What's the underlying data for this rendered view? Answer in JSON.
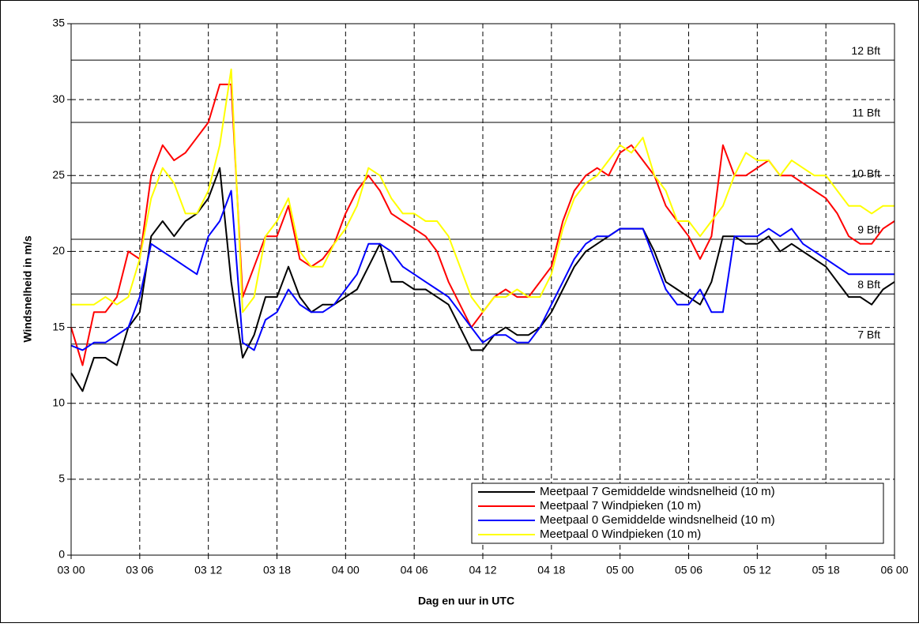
{
  "chart_data": {
    "type": "line",
    "x_label": "Dag en uur in UTC",
    "y_label": "Windsnelheid in m/s",
    "x": [
      0,
      1,
      2,
      3,
      4,
      5,
      6,
      7,
      8,
      9,
      10,
      11,
      12,
      13,
      14,
      15,
      16,
      17,
      18,
      19,
      20,
      21,
      22,
      23,
      24,
      25,
      26,
      27,
      28,
      29,
      30,
      31,
      32,
      33,
      34,
      35,
      36,
      37,
      38,
      39,
      40,
      41,
      42,
      43,
      44,
      45,
      46,
      47,
      48,
      49,
      50,
      51,
      52,
      53,
      54,
      55,
      56,
      57,
      58,
      59,
      60,
      61,
      62,
      63,
      64,
      65,
      66,
      67,
      68,
      69,
      70,
      71,
      72
    ],
    "xlim": [
      0,
      72
    ],
    "xticks": [
      {
        "value": 0,
        "label": "03 00"
      },
      {
        "value": 6,
        "label": "03 06"
      },
      {
        "value": 12,
        "label": "03 12"
      },
      {
        "value": 18,
        "label": "03 18"
      },
      {
        "value": 24,
        "label": "04 00"
      },
      {
        "value": 30,
        "label": "04 06"
      },
      {
        "value": 36,
        "label": "04 12"
      },
      {
        "value": 42,
        "label": "04 18"
      },
      {
        "value": 48,
        "label": "05 00"
      },
      {
        "value": 54,
        "label": "05 06"
      },
      {
        "value": 60,
        "label": "05 12"
      },
      {
        "value": 66,
        "label": "05 18"
      },
      {
        "value": 72,
        "label": "06 00"
      }
    ],
    "ylim": [
      0,
      35
    ],
    "yticks": [
      0,
      5,
      10,
      15,
      20,
      25,
      30,
      35
    ],
    "grid": true,
    "legend": "lower right",
    "reference_lines": [
      {
        "value": 32.6,
        "label": "12 Bft"
      },
      {
        "value": 28.5,
        "label": "11 Bft"
      },
      {
        "value": 24.5,
        "label": "10 Bft"
      },
      {
        "value": 20.8,
        "label": "9 Bft"
      },
      {
        "value": 17.2,
        "label": "8 Bft"
      },
      {
        "value": 13.9,
        "label": "7 Bft"
      }
    ],
    "series": [
      {
        "name": "Meetpaal 7 Gemiddelde windsnelheid (10 m)",
        "color": "#000000",
        "values": [
          12,
          10.8,
          13,
          13,
          12.5,
          15,
          16,
          21,
          22,
          21,
          22,
          22.5,
          23.5,
          25.5,
          18,
          13,
          14.5,
          17,
          17,
          19,
          17,
          16,
          16.5,
          16.5,
          17,
          17.5,
          19,
          20.5,
          18,
          18,
          17.5,
          17.5,
          17,
          16.5,
          15,
          13.5,
          13.5,
          14.5,
          15,
          14.5,
          14.5,
          15,
          16,
          17.5,
          19,
          20,
          20.5,
          21,
          21.5,
          21.5,
          21.5,
          20,
          18,
          17.5,
          17,
          16.5,
          18,
          21,
          21,
          20.5,
          20.5,
          21,
          20,
          20.5,
          20,
          19.5,
          19,
          18,
          17,
          17,
          16.5,
          17.5,
          18
        ]
      },
      {
        "name": "Meetpaal 7 Windpieken (10 m)",
        "color": "#ff0000",
        "values": [
          15,
          12.5,
          16,
          16,
          17,
          20,
          19.5,
          25,
          27,
          26,
          26.5,
          27.5,
          28.5,
          31,
          31,
          17,
          19,
          21,
          21,
          23,
          19.5,
          19,
          19.5,
          20.5,
          22.5,
          24,
          25,
          24,
          22.5,
          22,
          21.5,
          21,
          20,
          18,
          16.5,
          15,
          16,
          17,
          17.5,
          17,
          17,
          18,
          19,
          22,
          24,
          25,
          25.5,
          25,
          26.5,
          27,
          26,
          25,
          23,
          22,
          21,
          19.5,
          21,
          27,
          25,
          25,
          25.5,
          26,
          25,
          25,
          24.5,
          24,
          23.5,
          22.5,
          21,
          20.5,
          20.5,
          21.5,
          22
        ]
      },
      {
        "name": "Meetpaal 0 Gemiddelde windsnelheid (10 m)",
        "color": "#0000ff",
        "values": [
          13.8,
          13.5,
          14,
          14,
          14.5,
          15,
          17,
          20.5,
          20,
          19.5,
          19,
          18.5,
          21,
          22,
          24,
          14,
          13.5,
          15.5,
          16,
          17.5,
          16.5,
          16,
          16,
          16.5,
          17.5,
          18.5,
          20.5,
          20.5,
          20,
          19,
          18.5,
          18,
          17.5,
          17,
          16,
          15,
          14,
          14.5,
          14.5,
          14,
          14,
          15,
          16.5,
          18,
          19.5,
          20.5,
          21,
          21,
          21.5,
          21.5,
          21.5,
          19.5,
          17.5,
          16.5,
          16.5,
          17.5,
          16,
          16,
          21,
          21,
          21,
          21.5,
          21,
          21.5,
          20.5,
          20,
          19.5,
          19,
          18.5,
          18.5,
          18.5,
          18.5,
          18.5
        ]
      },
      {
        "name": "Meetpaal 0 Windpieken (10 m)",
        "color": "#ffff00",
        "values": [
          16.5,
          16.5,
          16.5,
          17,
          16.5,
          17,
          19.5,
          23.5,
          25.5,
          24.5,
          22.5,
          22.5,
          24,
          27,
          32,
          16,
          17,
          21,
          22,
          23.5,
          20,
          19,
          19,
          20.5,
          21.5,
          23,
          25.5,
          25,
          23.5,
          22.5,
          22.5,
          22,
          22,
          21,
          19,
          17,
          16,
          17,
          17,
          17.5,
          17,
          17,
          18.5,
          21.5,
          23.5,
          24.5,
          25,
          26,
          27,
          26.5,
          27.5,
          25,
          24,
          22,
          22,
          21,
          22,
          23,
          25,
          26.5,
          26,
          26,
          25,
          26,
          25.5,
          25,
          25,
          24,
          23,
          23,
          22.5,
          23,
          23
        ]
      }
    ]
  }
}
